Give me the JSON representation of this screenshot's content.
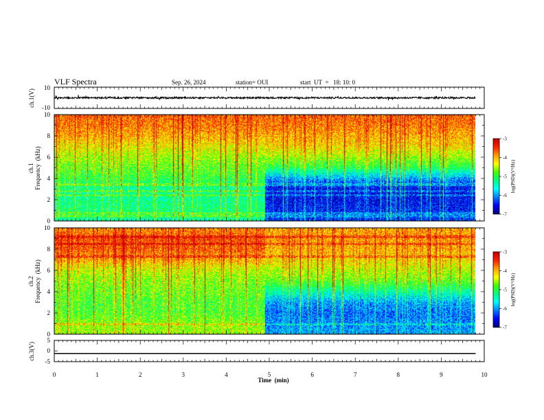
{
  "header": {
    "title": "VLF Spectra",
    "date": "Sep. 26, 2024",
    "station": "station= OUI",
    "start_time": "start  UT  =   18: 10: 0"
  },
  "chart_data": [
    {
      "type": "line",
      "panel": "ch1-waveform",
      "ylabel": "ch.1(V)",
      "ylim": [
        -10,
        10
      ],
      "yticks": [
        "10",
        "-10"
      ],
      "xlim": [
        0,
        10
      ],
      "series": [
        {
          "values_approx_mean": 0,
          "amplitude_approx": [
            -2,
            1.5
          ]
        }
      ],
      "data_end_min": 9.8
    },
    {
      "type": "heatmap",
      "panel": "ch1-spectrogram",
      "ylabel": "ch.1",
      "ylabel2": "Frequency  (kHz)",
      "ylim": [
        0,
        10
      ],
      "yticks": [
        "0",
        "2",
        "4",
        "6",
        "8",
        "10"
      ],
      "xlim": [
        0,
        10
      ],
      "data_end_min": 9.8,
      "change_time_min": 4.9,
      "log_psd_by_freq": {
        "freq_khz": [
          0,
          1,
          2,
          3,
          4,
          5,
          6,
          7,
          8,
          9,
          10
        ],
        "before": [
          -5.4,
          -5.2,
          -5.3,
          -5.3,
          -5.0,
          -4.8,
          -4.6,
          -4.3,
          -4.0,
          -3.8,
          -3.7
        ],
        "after": [
          -6.4,
          -6.5,
          -6.6,
          -6.6,
          -6.0,
          -5.1,
          -4.6,
          -4.2,
          -4.0,
          -3.8,
          -3.7
        ]
      },
      "horizontal_lines_khz": [
        0.4,
        0.7,
        2.4,
        2.8,
        3.4
      ],
      "colorbar": {
        "label": "log(PSD)(V²/Hz)",
        "range": [
          -7,
          -3
        ],
        "ticks": [
          "-3",
          "-4",
          "-5",
          "-6",
          "-7"
        ]
      }
    },
    {
      "type": "heatmap",
      "panel": "ch2-spectrogram",
      "ylabel": "ch.2",
      "ylabel2": "Frequency  (kHz)",
      "ylim": [
        0,
        10
      ],
      "yticks": [
        "0",
        "2",
        "4",
        "6",
        "8",
        "10"
      ],
      "xlim": [
        0,
        10
      ],
      "data_end_min": 9.8,
      "change_time_min": 4.9,
      "log_psd_by_freq": {
        "freq_khz": [
          0,
          1,
          2,
          3,
          4,
          5,
          6,
          7,
          8,
          9,
          10
        ],
        "before": [
          -4.6,
          -4.7,
          -4.9,
          -4.9,
          -4.8,
          -4.7,
          -4.5,
          -4.0,
          -3.7,
          -3.6,
          -3.9
        ],
        "after": [
          -6.0,
          -6.1,
          -6.2,
          -6.0,
          -5.4,
          -4.8,
          -4.5,
          -4.2,
          -4.0,
          -3.9,
          -4.0
        ]
      },
      "horizontal_lines_khz": [
        0.9,
        7.3,
        8.5,
        9.2
      ],
      "colorbar": {
        "label": "log(PSD)(V²/Hz)",
        "range": [
          -7,
          -3
        ],
        "ticks": [
          "-3",
          "-4",
          "-5",
          "-6",
          "-7"
        ]
      }
    },
    {
      "type": "line",
      "panel": "ch3-waveform",
      "ylabel": "ch.3(V)",
      "ylim": [
        -5,
        5
      ],
      "yticks": [
        "5",
        "0",
        "-5"
      ],
      "xlim": [
        0,
        10
      ],
      "series": [
        {
          "values_approx_mean": -1.2
        }
      ],
      "data_end_min": 9.8
    }
  ],
  "x_axis": {
    "label": "Time  (min)",
    "ticks": [
      "0",
      "1",
      "2",
      "3",
      "4",
      "5",
      "6",
      "7",
      "8",
      "9",
      "10"
    ]
  },
  "colormap": [
    "#00007f",
    "#0000ff",
    "#0080ff",
    "#00ffff",
    "#00ff80",
    "#40ff00",
    "#ffff00",
    "#ffa000",
    "#ff2000",
    "#c80000"
  ]
}
